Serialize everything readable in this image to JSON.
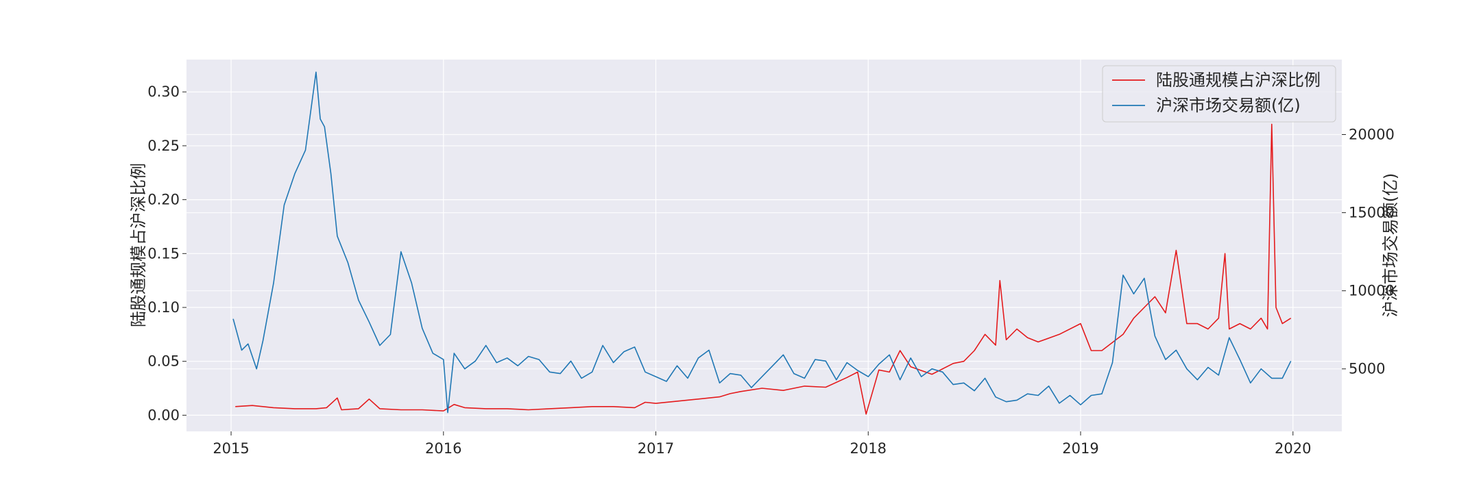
{
  "chart_data": {
    "type": "line",
    "title": "",
    "xlabel": "",
    "ylabel_left": "陆股通规模占沪深比例",
    "ylabel_right": "沪深市场交易额(亿)",
    "x_ticks": [
      "2015",
      "2016",
      "2017",
      "2018",
      "2019",
      "2020"
    ],
    "xlim": [
      2014.79,
      2020.23
    ],
    "ylim_left": [
      -0.015,
      0.33
    ],
    "yticks_left": [
      "0.00",
      "0.05",
      "0.10",
      "0.15",
      "0.20",
      "0.25",
      "0.30"
    ],
    "ylim_right": [
      1000,
      24800
    ],
    "yticks_right": [
      "5000",
      "10000",
      "15000",
      "20000"
    ],
    "grid": true,
    "legend_position": "top-right",
    "colors": {
      "background": "#eaeaf2",
      "grid": "#ffffff",
      "series_ratio": "#e41a1c",
      "series_volume": "#1f77b4"
    },
    "series": [
      {
        "name": "陆股通规模占沪深比例",
        "axis": "left",
        "color": "#e41a1c",
        "x": [
          2015.02,
          2015.1,
          2015.2,
          2015.3,
          2015.4,
          2015.45,
          2015.5,
          2015.52,
          2015.6,
          2015.65,
          2015.7,
          2015.8,
          2015.9,
          2016.0,
          2016.05,
          2016.1,
          2016.2,
          2016.3,
          2016.4,
          2016.5,
          2016.6,
          2016.7,
          2016.8,
          2016.9,
          2016.95,
          2017.0,
          2017.1,
          2017.2,
          2017.3,
          2017.35,
          2017.4,
          2017.5,
          2017.6,
          2017.7,
          2017.8,
          2017.9,
          2017.95,
          2017.99,
          2018.05,
          2018.1,
          2018.15,
          2018.2,
          2018.3,
          2018.4,
          2018.45,
          2018.5,
          2018.55,
          2018.6,
          2018.62,
          2018.65,
          2018.7,
          2018.75,
          2018.8,
          2018.9,
          2019.0,
          2019.05,
          2019.1,
          2019.2,
          2019.25,
          2019.3,
          2019.35,
          2019.4,
          2019.45,
          2019.5,
          2019.55,
          2019.6,
          2019.65,
          2019.68,
          2019.7,
          2019.75,
          2019.8,
          2019.85,
          2019.88,
          2019.9,
          2019.92,
          2019.95,
          2019.99
        ],
        "values": [
          0.008,
          0.009,
          0.007,
          0.006,
          0.006,
          0.007,
          0.016,
          0.005,
          0.006,
          0.015,
          0.006,
          0.005,
          0.005,
          0.004,
          0.01,
          0.007,
          0.006,
          0.006,
          0.005,
          0.006,
          0.007,
          0.008,
          0.008,
          0.007,
          0.012,
          0.011,
          0.013,
          0.015,
          0.017,
          0.02,
          0.022,
          0.025,
          0.023,
          0.027,
          0.026,
          0.035,
          0.04,
          0.001,
          0.042,
          0.04,
          0.06,
          0.045,
          0.038,
          0.048,
          0.05,
          0.06,
          0.075,
          0.065,
          0.125,
          0.07,
          0.08,
          0.072,
          0.068,
          0.075,
          0.085,
          0.06,
          0.06,
          0.075,
          0.09,
          0.1,
          0.11,
          0.095,
          0.153,
          0.085,
          0.085,
          0.08,
          0.09,
          0.15,
          0.08,
          0.085,
          0.08,
          0.09,
          0.08,
          0.27,
          0.1,
          0.085,
          0.09
        ]
      },
      {
        "name": "沪深市场交易额(亿)",
        "axis": "right",
        "color": "#1f77b4",
        "x": [
          2015.01,
          2015.05,
          2015.08,
          2015.12,
          2015.15,
          2015.2,
          2015.25,
          2015.3,
          2015.35,
          2015.4,
          2015.42,
          2015.44,
          2015.47,
          2015.5,
          2015.55,
          2015.6,
          2015.65,
          2015.7,
          2015.75,
          2015.8,
          2015.85,
          2015.9,
          2015.95,
          2016.0,
          2016.02,
          2016.05,
          2016.1,
          2016.15,
          2016.2,
          2016.25,
          2016.3,
          2016.35,
          2016.4,
          2016.45,
          2016.5,
          2016.55,
          2016.6,
          2016.65,
          2016.7,
          2016.75,
          2016.8,
          2016.85,
          2016.9,
          2016.95,
          2017.0,
          2017.05,
          2017.1,
          2017.15,
          2017.2,
          2017.25,
          2017.3,
          2017.35,
          2017.4,
          2017.45,
          2017.5,
          2017.55,
          2017.6,
          2017.65,
          2017.7,
          2017.75,
          2017.8,
          2017.85,
          2017.9,
          2017.95,
          2018.0,
          2018.05,
          2018.1,
          2018.15,
          2018.2,
          2018.25,
          2018.3,
          2018.35,
          2018.4,
          2018.45,
          2018.5,
          2018.55,
          2018.6,
          2018.65,
          2018.7,
          2018.75,
          2018.8,
          2018.85,
          2018.9,
          2018.95,
          2019.0,
          2019.05,
          2019.1,
          2019.15,
          2019.2,
          2019.25,
          2019.3,
          2019.35,
          2019.4,
          2019.45,
          2019.5,
          2019.55,
          2019.6,
          2019.65,
          2019.7,
          2019.75,
          2019.8,
          2019.85,
          2019.9,
          2019.95,
          2019.99
        ],
        "values": [
          8200,
          6200,
          6600,
          5000,
          6800,
          10500,
          15500,
          17500,
          19000,
          24000,
          21000,
          20500,
          17500,
          13500,
          11800,
          9400,
          8000,
          6500,
          7200,
          12500,
          10500,
          7600,
          6000,
          5600,
          2200,
          6000,
          5000,
          5500,
          6500,
          5400,
          5700,
          5200,
          5800,
          5600,
          4800,
          4700,
          5500,
          4400,
          4800,
          6500,
          5400,
          6100,
          6400,
          4800,
          4500,
          4200,
          5200,
          4400,
          5700,
          6200,
          4100,
          4700,
          4600,
          3800,
          4500,
          5200,
          5900,
          4700,
          4400,
          5600,
          5500,
          4300,
          5400,
          4900,
          4500,
          5300,
          5900,
          4300,
          5700,
          4500,
          5000,
          4800,
          4000,
          4100,
          3600,
          4400,
          3200,
          2900,
          3000,
          3400,
          3300,
          3900,
          2800,
          3300,
          2700,
          3300,
          3400,
          5400,
          11000,
          9800,
          10800,
          7100,
          5600,
          6200,
          5000,
          4300,
          5100,
          4600,
          7000,
          5600,
          4100,
          5000,
          4400,
          4400,
          5500
        ]
      }
    ]
  }
}
